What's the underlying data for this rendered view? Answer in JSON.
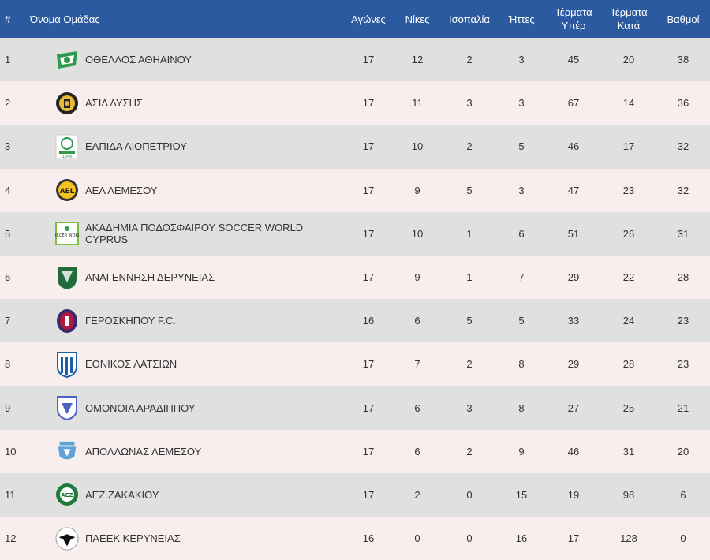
{
  "table": {
    "headers": {
      "rank": "#",
      "team": "Όνομα Ομάδας",
      "played": "Αγώνες",
      "wins": "Νίκες",
      "draws": "Ισοπαλία",
      "losses": "Ήττες",
      "goals_for": "Τέρματα Υπέρ",
      "goals_against": "Τέρματα Κατά",
      "points": "Βαθμοί"
    },
    "rows": [
      {
        "rank": "1",
        "team": "ΟΘΕΛΛΟΣ ΑΘΗΑΙΝΟΥ",
        "played": "17",
        "wins": "12",
        "draws": "2",
        "losses": "3",
        "goals_for": "45",
        "goals_against": "20",
        "points": "38",
        "logo": "othellos-crest"
      },
      {
        "rank": "2",
        "team": "ΑΣΙΛ ΛΥΣΗΣ",
        "played": "17",
        "wins": "11",
        "draws": "3",
        "losses": "3",
        "goals_for": "67",
        "goals_against": "14",
        "points": "36",
        "logo": "asil-crest"
      },
      {
        "rank": "3",
        "team": "ΕΛΠΙΔΑ ΛΙΟΠΕΤΡΙΟΥ",
        "played": "17",
        "wins": "10",
        "draws": "2",
        "losses": "5",
        "goals_for": "46",
        "goals_against": "17",
        "points": "32",
        "logo": "elpida-crest"
      },
      {
        "rank": "4",
        "team": "ΑΕΛ ΛΕΜΕΣΟΥ",
        "played": "17",
        "wins": "9",
        "draws": "5",
        "losses": "3",
        "goals_for": "47",
        "goals_against": "23",
        "points": "32",
        "logo": "ael-crest"
      },
      {
        "rank": "5",
        "team": "ΑΚΑΔΗΜΙΑ ΠΟΔΟΣΦΑΙΡΟΥ SOCCER WORLD CYPRUS",
        "played": "17",
        "wins": "10",
        "draws": "1",
        "losses": "6",
        "goals_for": "51",
        "goals_against": "26",
        "points": "31",
        "logo": "soccer-world-crest"
      },
      {
        "rank": "6",
        "team": "ΑΝΑΓΕΝΝΗΣΗ ΔΕΡΥΝΕΙΑΣ",
        "played": "17",
        "wins": "9",
        "draws": "1",
        "losses": "7",
        "goals_for": "29",
        "goals_against": "22",
        "points": "28",
        "logo": "anagennisi-crest"
      },
      {
        "rank": "7",
        "team": "ΓΕΡΟΣΚΗΠΟΥ F.C.",
        "played": "16",
        "wins": "6",
        "draws": "5",
        "losses": "5",
        "goals_for": "33",
        "goals_against": "24",
        "points": "23",
        "logo": "geroskipou-crest"
      },
      {
        "rank": "8",
        "team": "ΕΘΝΙΚΟΣ ΛΑΤΣΙΩΝ",
        "played": "17",
        "wins": "7",
        "draws": "2",
        "losses": "8",
        "goals_for": "29",
        "goals_against": "28",
        "points": "23",
        "logo": "ethnikos-crest"
      },
      {
        "rank": "9",
        "team": "ΟΜΟΝΟΙΑ ΑΡΑΔΙΠΠΟΥ",
        "played": "17",
        "wins": "6",
        "draws": "3",
        "losses": "8",
        "goals_for": "27",
        "goals_against": "25",
        "points": "21",
        "logo": "omonoia-crest"
      },
      {
        "rank": "10",
        "team": "ΑΠΟΛΛΩΝΑΣ ΛΕΜΕΣΟΥ",
        "played": "17",
        "wins": "6",
        "draws": "2",
        "losses": "9",
        "goals_for": "46",
        "goals_against": "31",
        "points": "20",
        "logo": "apollonas-crest"
      },
      {
        "rank": "11",
        "team": "ΑΕΖ ΖΑΚΑΚΙΟΥ",
        "played": "17",
        "wins": "2",
        "draws": "0",
        "losses": "15",
        "goals_for": "19",
        "goals_against": "98",
        "points": "6",
        "logo": "aez-crest"
      },
      {
        "rank": "12",
        "team": "ΠΑΕΕΚ ΚΕΡΥΝΕΙΑΣ",
        "played": "16",
        "wins": "0",
        "draws": "0",
        "losses": "16",
        "goals_for": "17",
        "goals_against": "128",
        "points": "0",
        "logo": "paeek-crest"
      }
    ]
  },
  "logo_text": {
    "soccer_world": "SOCCER WORLD",
    "aez": "AEZ",
    "elpida_year": "1948",
    "ael": "AEL"
  },
  "colors": {
    "header_bg": "#2b5aa0",
    "row_odd": "#e0e0e0",
    "row_even": "#f8eeee"
  }
}
